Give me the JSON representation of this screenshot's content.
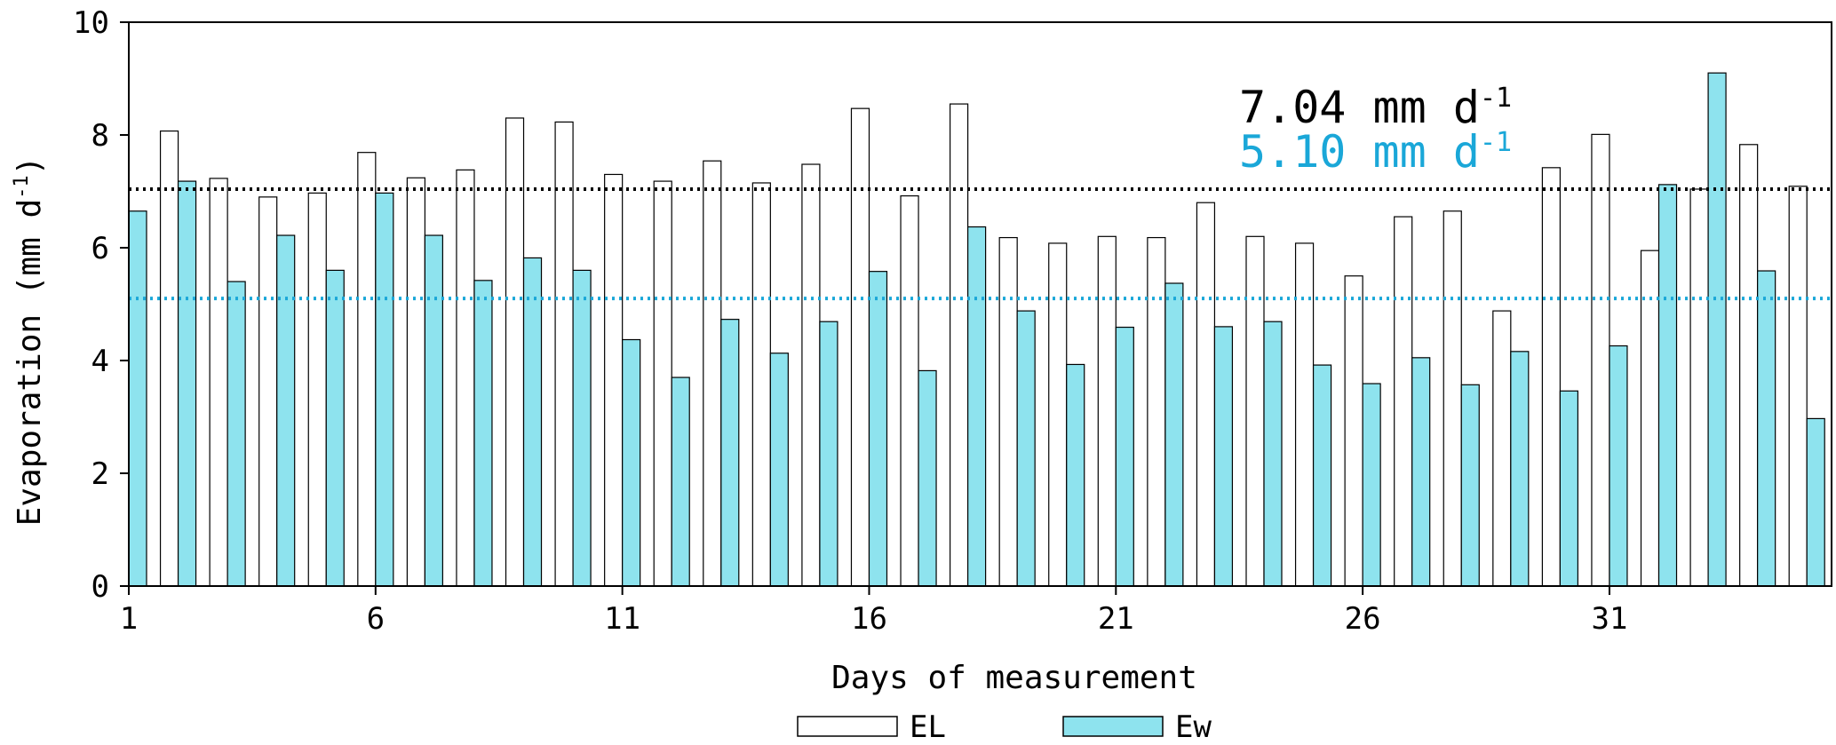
{
  "chart_data": {
    "type": "bar",
    "xlabel": "Days of measurement",
    "ylabel": "Evaporation (mm d",
    "ylabel_sup": "-1",
    "ylabel_close": ")",
    "ylim": [
      0,
      10
    ],
    "yticks": [
      0,
      2,
      4,
      6,
      8,
      10
    ],
    "xticks": [
      1,
      6,
      11,
      16,
      21,
      26,
      31
    ],
    "grid": false,
    "legend_position": "bottom",
    "categories": [
      1,
      2,
      3,
      4,
      5,
      6,
      7,
      8,
      9,
      10,
      11,
      12,
      13,
      14,
      15,
      16,
      17,
      18,
      19,
      20,
      21,
      22,
      23,
      24,
      25,
      26,
      27,
      28,
      29,
      30,
      31,
      32,
      33,
      34,
      35
    ],
    "series": [
      {
        "name": "EL",
        "color": "#ffffff",
        "values": [
          0,
          8.07,
          7.23,
          6.9,
          6.97,
          7.69,
          7.24,
          7.38,
          8.3,
          8.23,
          7.3,
          7.18,
          7.54,
          7.15,
          7.48,
          8.47,
          6.92,
          8.55,
          6.18,
          6.08,
          6.2,
          6.18,
          6.8,
          6.2,
          6.08,
          5.5,
          6.55,
          6.65,
          4.88,
          7.42,
          8.01,
          5.95,
          7.04,
          7.83,
          7.09
        ]
      },
      {
        "name": "Ew",
        "color": "#8ee3ee",
        "values": [
          6.65,
          7.18,
          5.4,
          6.22,
          5.6,
          6.97,
          6.22,
          5.42,
          5.82,
          5.6,
          4.37,
          3.7,
          4.73,
          4.13,
          4.69,
          5.58,
          3.82,
          6.37,
          4.88,
          3.93,
          4.59,
          5.37,
          4.6,
          4.69,
          3.92,
          3.59,
          4.05,
          3.57,
          4.16,
          3.46,
          4.26,
          7.12,
          9.1,
          5.59,
          2.97
        ]
      }
    ],
    "reference_lines": [
      {
        "value": 7.04,
        "color": "#000000"
      },
      {
        "value": 5.1,
        "color": "#1aa7d8"
      }
    ],
    "annotations": [
      {
        "text": "7.04 mm d",
        "sup": "-1",
        "color": "#000000"
      },
      {
        "text": "5.10 mm d",
        "sup": "-1",
        "color": "#1aa7d8"
      }
    ]
  }
}
